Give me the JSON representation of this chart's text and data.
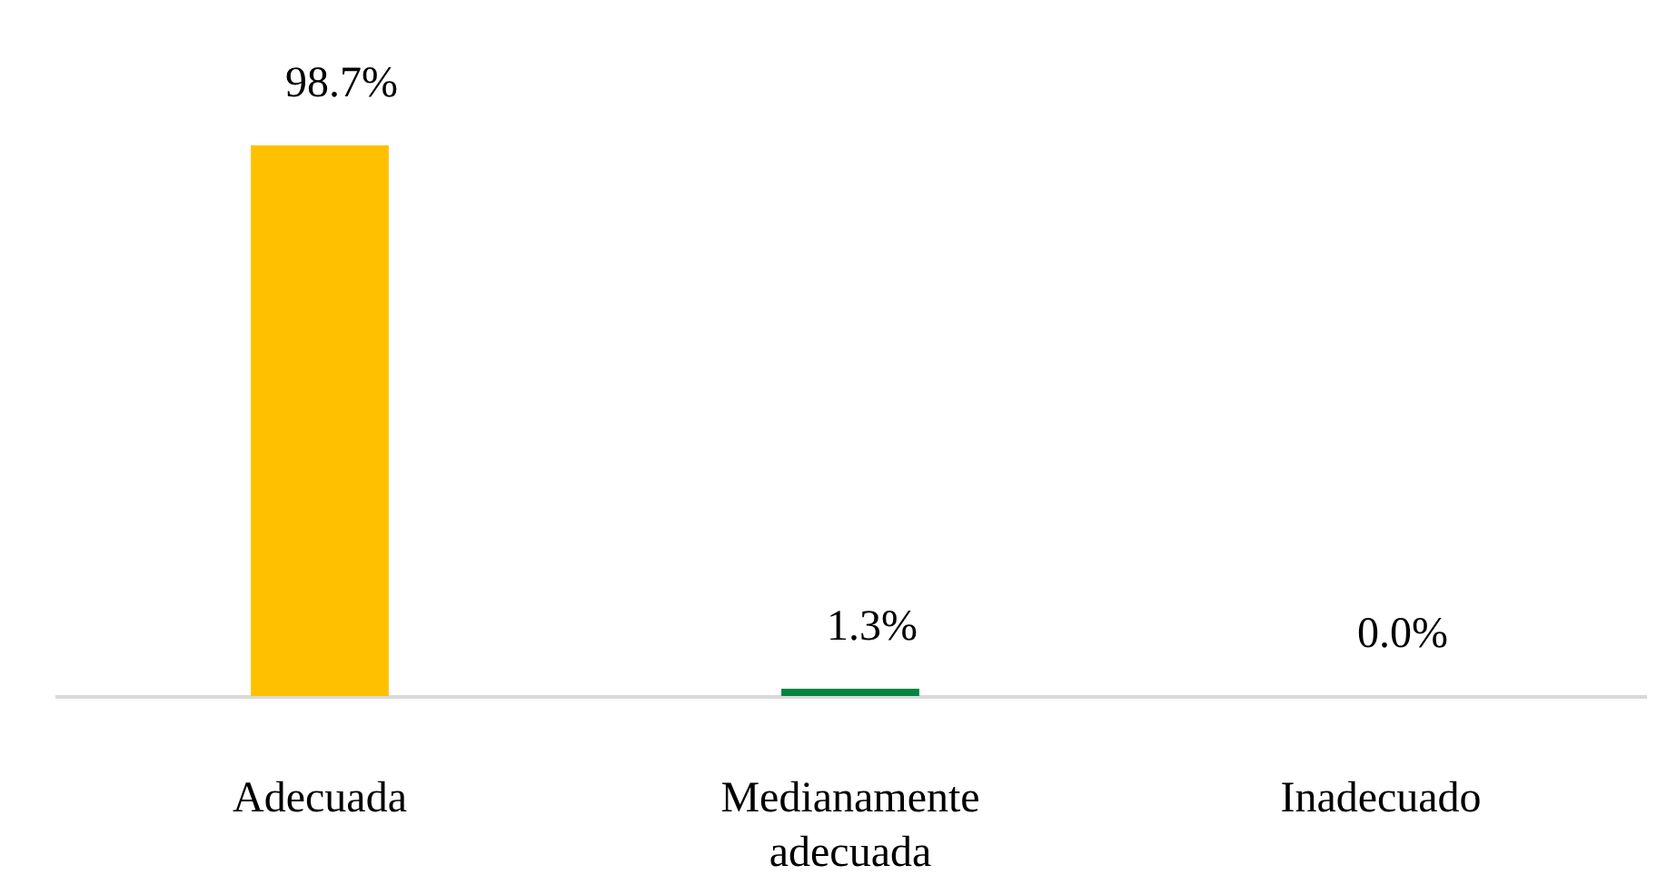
{
  "chart_data": {
    "type": "bar",
    "categories": [
      "Adecuada",
      "Medianamente adecuada",
      "Inadecuado"
    ],
    "values": [
      98.7,
      1.3,
      0.0
    ],
    "colors": [
      "#ffc000",
      "#00853e",
      "#848e99"
    ],
    "value_labels": [
      "98.7%",
      "1.3%",
      "0.0%"
    ]
  }
}
